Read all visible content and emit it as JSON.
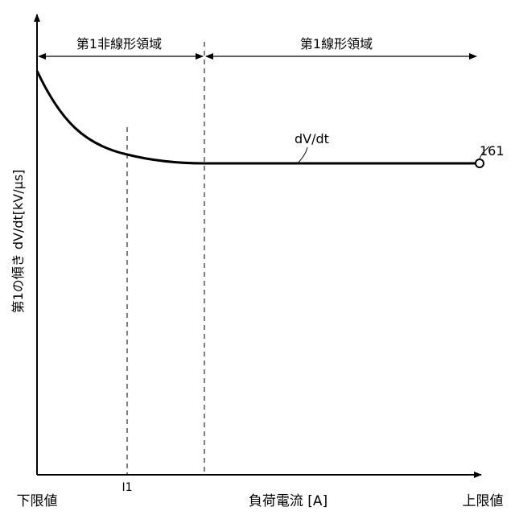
{
  "y_axis_label": "第1の傾き dV/dt[kV/μs]",
  "x_axis": {
    "left_label": "下限値",
    "center_label": "負荷電流 [A]",
    "right_label": "上限値"
  },
  "regions": [
    {
      "label": "第1非線形領域"
    },
    {
      "label": "第1線形領域"
    }
  ],
  "markers": [
    {
      "label": "I1"
    }
  ],
  "curve_label": "dV/dt",
  "reference_numeral": "161"
}
